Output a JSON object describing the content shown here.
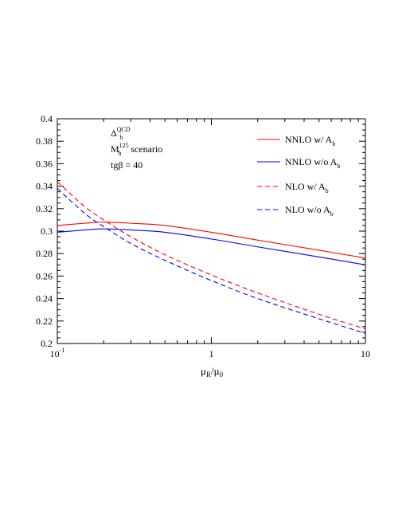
{
  "chart_data": {
    "type": "line",
    "xlabel": {
      "main": "μ",
      "sub1": "R",
      "mid": "/μ",
      "sub2": "0"
    },
    "x_scale": "log",
    "xlim": [
      0.1,
      10
    ],
    "ylim": [
      0.2,
      0.4
    ],
    "x_ticks": [
      {
        "value": 0.1,
        "base": "10",
        "sup": "-1"
      },
      {
        "value": 1,
        "base": "1",
        "sup": ""
      },
      {
        "value": 10,
        "base": "10",
        "sup": ""
      }
    ],
    "y_ticks": [
      {
        "value": 0.2,
        "label": "0.2"
      },
      {
        "value": 0.22,
        "label": "0.22"
      },
      {
        "value": 0.24,
        "label": "0.24"
      },
      {
        "value": 0.26,
        "label": "0.26"
      },
      {
        "value": 0.28,
        "label": "0.28"
      },
      {
        "value": 0.3,
        "label": "0.3"
      },
      {
        "value": 0.32,
        "label": "0.32"
      },
      {
        "value": 0.34,
        "label": "0.34"
      },
      {
        "value": 0.36,
        "label": "0.36"
      },
      {
        "value": 0.38,
        "label": "0.38"
      },
      {
        "value": 0.4,
        "label": "0.4"
      }
    ],
    "annotation": [
      {
        "main": "Δ",
        "sub": "b",
        "sup": "QCD",
        "rest": ""
      },
      {
        "main": "M",
        "sub": "h",
        "sup": "125",
        "rest": " scenario"
      },
      {
        "main": "tgβ = 40",
        "sub": "",
        "sup": "",
        "rest": ""
      }
    ],
    "legend_position": "top-right",
    "grid": false,
    "series": [
      {
        "name": "NNLO w/  A",
        "name_sub": "b",
        "color": "#ff0000",
        "dash": false,
        "x": [
          0.1,
          0.15,
          0.2,
          0.3,
          0.5,
          1,
          2,
          5,
          10
        ],
        "y": [
          0.305,
          0.307,
          0.308,
          0.307,
          0.305,
          0.299,
          0.292,
          0.283,
          0.276
        ]
      },
      {
        "name": "NNLO w/o A",
        "name_sub": "b",
        "color": "#0000ff",
        "dash": false,
        "x": [
          0.1,
          0.15,
          0.2,
          0.3,
          0.5,
          1,
          2,
          5,
          10
        ],
        "y": [
          0.299,
          0.301,
          0.302,
          0.301,
          0.299,
          0.293,
          0.286,
          0.277,
          0.27
        ]
      },
      {
        "name": "NLO w/  A",
        "name_sub": "b",
        "color": "#ff0000",
        "dash": true,
        "x": [
          0.1,
          0.15,
          0.2,
          0.3,
          0.5,
          1,
          2,
          5,
          10
        ],
        "y": [
          0.344,
          0.322,
          0.31,
          0.295,
          0.279,
          0.261,
          0.245,
          0.226,
          0.213
        ]
      },
      {
        "name": "NLO w/o A",
        "name_sub": "b",
        "color": "#0000ff",
        "dash": true,
        "x": [
          0.1,
          0.15,
          0.2,
          0.3,
          0.5,
          1,
          2,
          5,
          10
        ],
        "y": [
          0.338,
          0.316,
          0.304,
          0.289,
          0.274,
          0.256,
          0.24,
          0.222,
          0.209
        ]
      }
    ]
  }
}
